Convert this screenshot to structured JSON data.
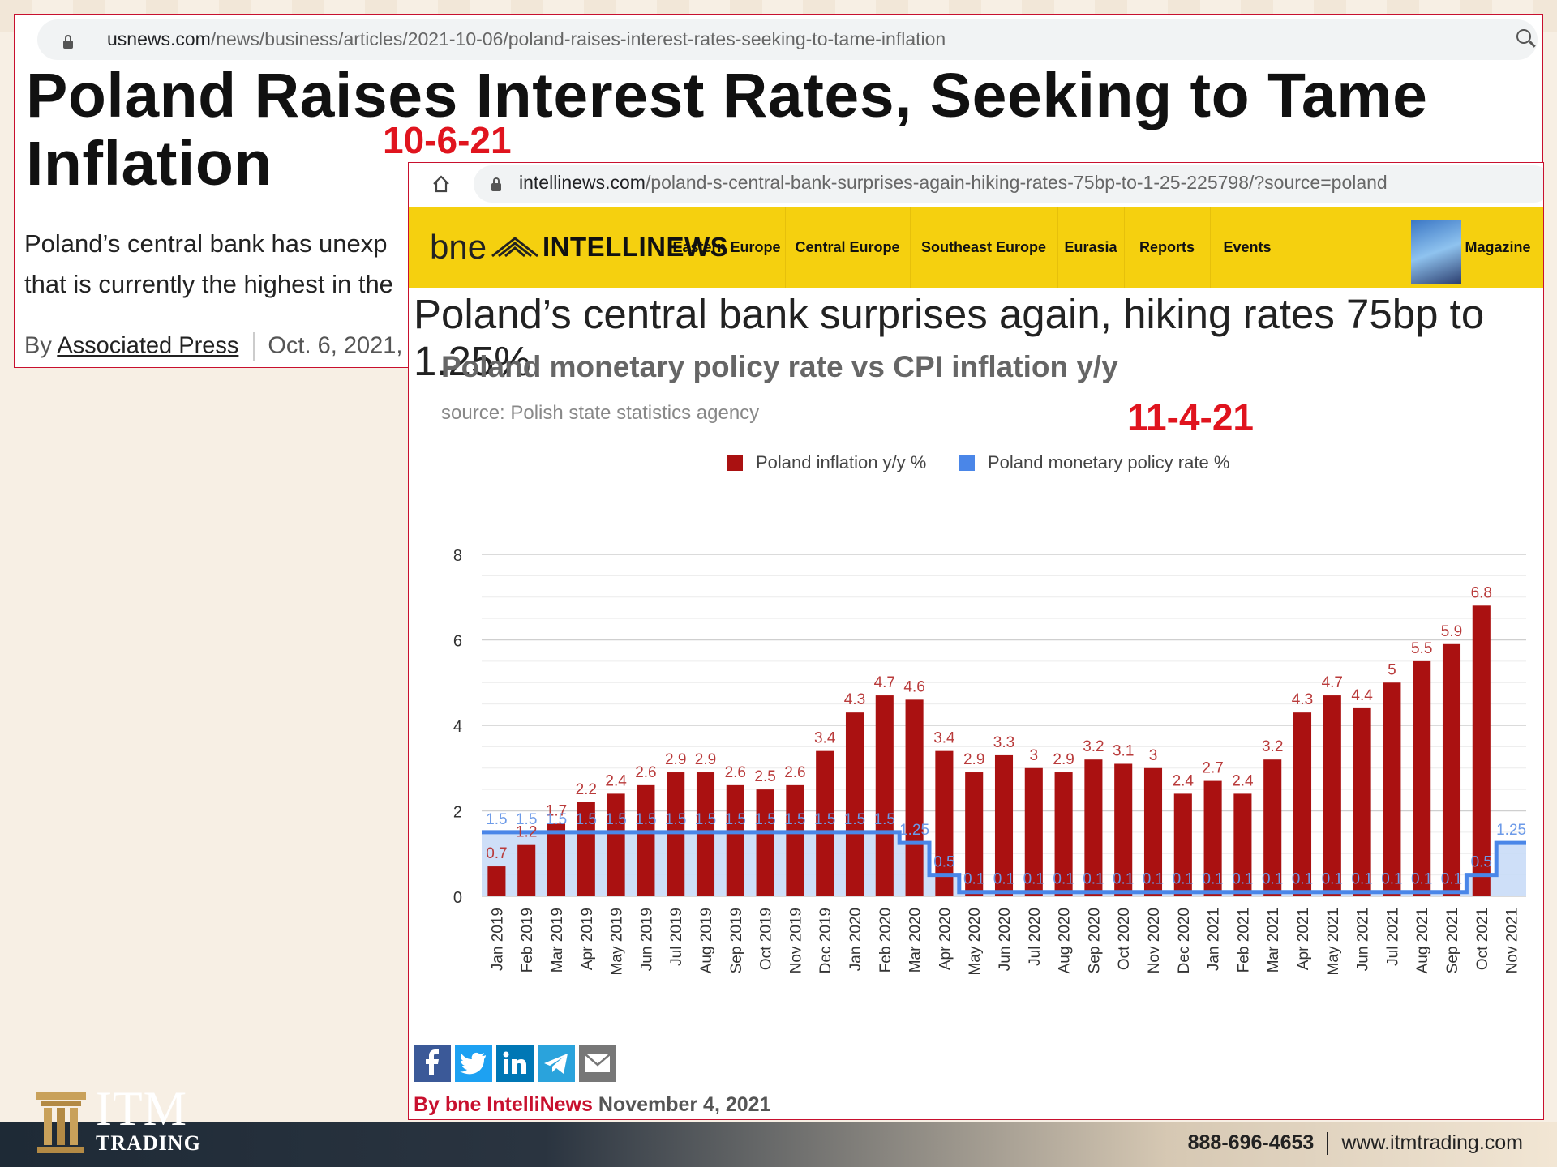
{
  "usnews": {
    "url_host": "usnews.com",
    "url_path": "/news/business/articles/2021-10-06/poland-raises-interest-rates-seeking-to-tame-inflation",
    "title_line1": "Poland Raises Interest Rates, Seeking to Tame",
    "title_line2": "Inflation",
    "body_line1": "Poland’s central bank has unexp",
    "body_line2": "that is currently the highest in the",
    "by_prefix": "By ",
    "author": "Associated Press",
    "date": "Oct. 6, 2021,"
  },
  "annotations": {
    "date_oct": "10-6-21",
    "date_nov": "11-4-21"
  },
  "intellinews": {
    "url_host": "intellinews.com",
    "url_path": "/poland-s-central-bank-surprises-again-hiking-rates-75bp-to-1-25-225798/?source=poland",
    "logo_bne": "bne",
    "logo_name": "INTELLINEWS",
    "nav": [
      "Eastern Europe",
      "Central Europe",
      "Southeast Europe",
      "Eurasia",
      "Reports",
      "Events",
      "Magazine"
    ],
    "headline": "Poland’s central bank surprises again, hiking rates 75bp to 1.25%",
    "share_icons": [
      "facebook-icon",
      "twitter-icon",
      "linkedin-icon",
      "telegram-icon",
      "email-icon"
    ],
    "byline_source": "By bne IntelliNews",
    "byline_date": "November 4, 2021"
  },
  "chart_data": {
    "type": "bar",
    "title": "Poland monetary policy rate vs CPI inflation y/y",
    "subtitle": "source: Polish state statistics agency",
    "categories": [
      "Jan 2019",
      "Feb 2019",
      "Mar 2019",
      "Apr 2019",
      "May 2019",
      "Jun 2019",
      "Jul 2019",
      "Aug 2019",
      "Sep 2019",
      "Oct 2019",
      "Nov 2019",
      "Dec 2019",
      "Jan 2020",
      "Feb 2020",
      "Mar 2020",
      "Apr 2020",
      "May 2020",
      "Jun 2020",
      "Jul 2020",
      "Aug 2020",
      "Sep 2020",
      "Oct 2020",
      "Nov 2020",
      "Dec 2020",
      "Jan 2021",
      "Feb 2021",
      "Mar 2021",
      "Apr 2021",
      "May 2021",
      "Jun 2021",
      "Jul 2021",
      "Aug 2021",
      "Sep 2021",
      "Oct 2021",
      "Nov 2021"
    ],
    "series": [
      {
        "name": "Poland inflation y/y %",
        "kind": "bar",
        "color": "#aa1111",
        "values": [
          0.7,
          1.2,
          1.7,
          2.2,
          2.4,
          2.6,
          2.9,
          2.9,
          2.6,
          2.5,
          2.6,
          3.4,
          4.3,
          4.7,
          4.6,
          3.4,
          2.9,
          3.3,
          3,
          2.9,
          3.2,
          3.1,
          3,
          2.4,
          2.7,
          2.4,
          3.2,
          4.3,
          4.7,
          4.4,
          5,
          5.5,
          5.9,
          6.8,
          null
        ]
      },
      {
        "name": "Poland monetary policy rate %",
        "kind": "step-area",
        "color": "#4a86e8",
        "values": [
          1.5,
          1.5,
          1.5,
          1.5,
          1.5,
          1.5,
          1.5,
          1.5,
          1.5,
          1.5,
          1.5,
          1.5,
          1.5,
          1.5,
          1.25,
          0.5,
          0.1,
          0.1,
          0.1,
          0.1,
          0.1,
          0.1,
          0.1,
          0.1,
          0.1,
          0.1,
          0.1,
          0.1,
          0.1,
          0.1,
          0.1,
          0.1,
          0.1,
          0.5,
          1.25
        ]
      }
    ],
    "ylim": [
      0,
      8
    ],
    "yticks": [
      0,
      2,
      4,
      6,
      8
    ],
    "legend_position": "top",
    "grid": true
  },
  "footer": {
    "brand_line1": "ITM",
    "brand_line2": "TRADING",
    "phone": "888-696-4653",
    "website": "www.itmtrading.com"
  },
  "colors": {
    "accent_red": "#e0141e",
    "nav_yellow": "#f5d00f",
    "bar_red": "#aa1111",
    "rate_blue": "#4a86e8"
  }
}
